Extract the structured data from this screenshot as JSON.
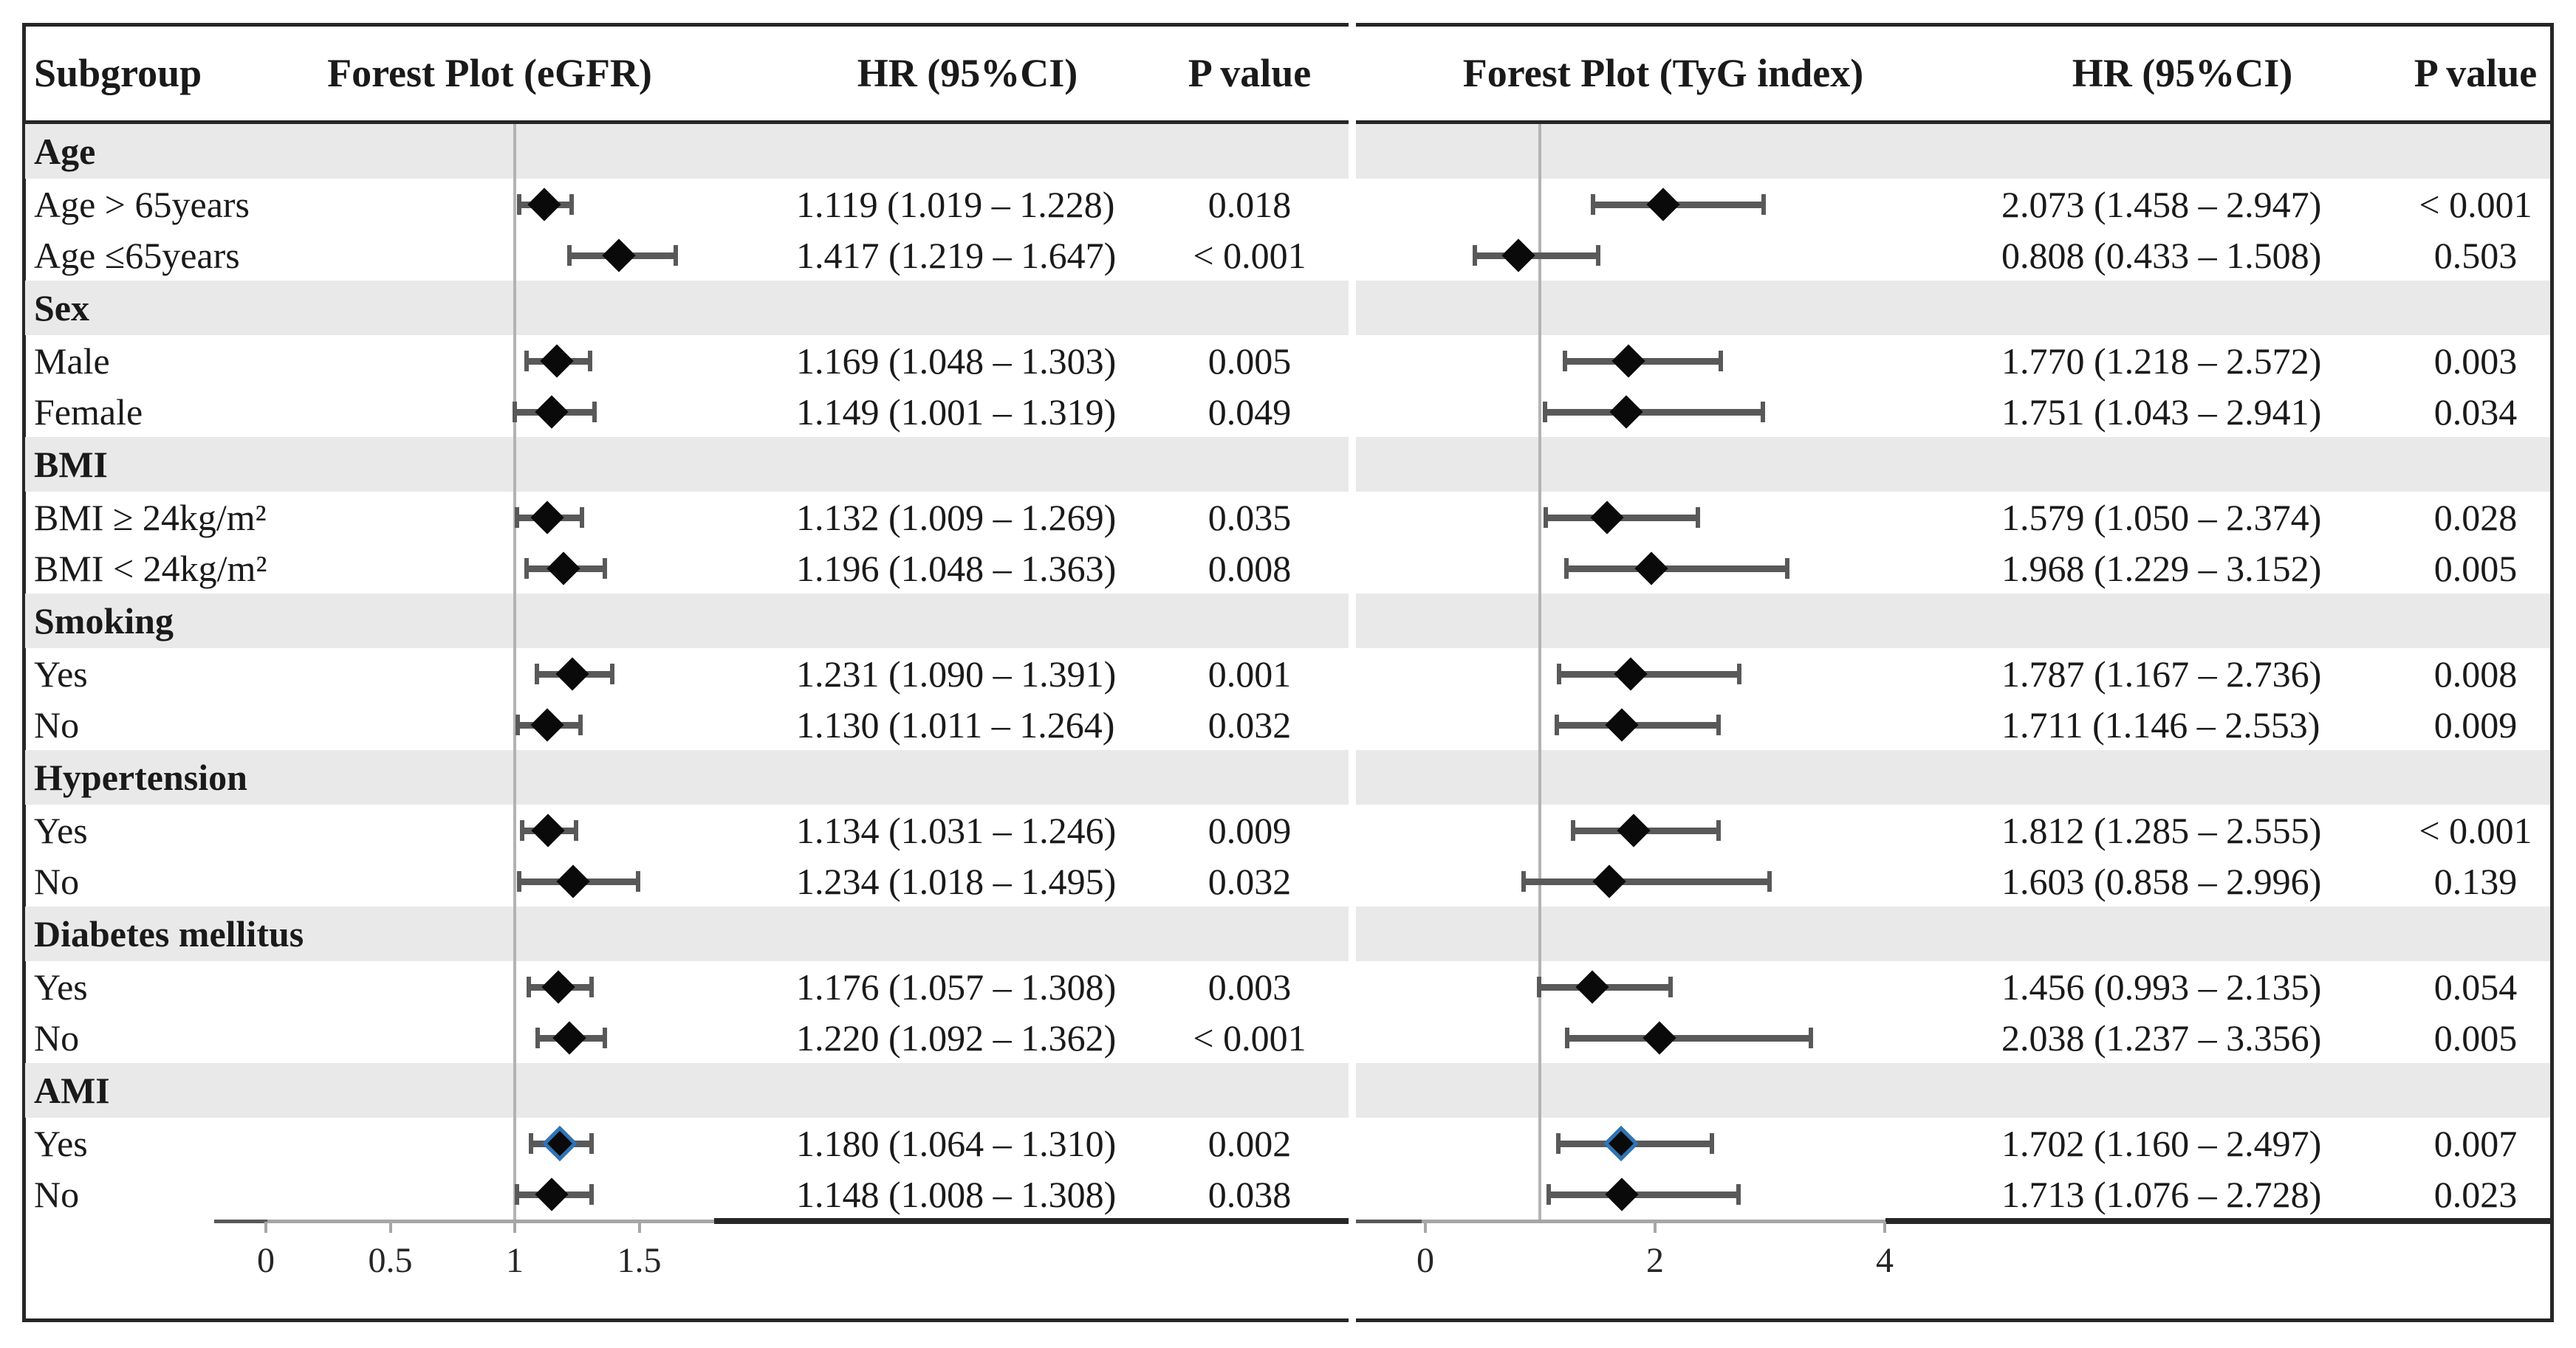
{
  "header": {
    "subgroup": "Subgroup",
    "plot_egfr": "Forest Plot (eGFR)",
    "hr1": "HR (95%CI)",
    "p1": "P value",
    "plot_tyg": "Forest Plot (TyG index)",
    "hr2": "HR (95%CI)",
    "p2": "P value"
  },
  "colors": {
    "section_row_bg": "#e9e9e9",
    "data_row_bg": "#ffffff",
    "diamond": "#0a0a0a",
    "highlight_diamond_outline": "#2e75b6",
    "ci_bar": "#595959",
    "reference_line": "#b3b3b3",
    "axis_line_gray": "#a6a6a6",
    "axis_line_dark": "#595959",
    "table_rule": "#262626"
  },
  "chart_data": {
    "type": "forest",
    "panels": [
      {
        "id": "egfr",
        "title": "Forest Plot (eGFR)",
        "hr_header": "HR (95%CI)",
        "p_header": "P value",
        "axis_tick_values": [
          0,
          0.5,
          1,
          1.5
        ],
        "axis_tick_labels": [
          "0",
          "0.5",
          "1",
          "1.5"
        ],
        "axis_range": [
          -0.2,
          1.8
        ],
        "reference_line": 1
      },
      {
        "id": "tyg",
        "title": "Forest Plot (TyG index)",
        "hr_header": "HR (95%CI)",
        "p_header": "P value",
        "axis_tick_values": [
          0,
          2,
          4
        ],
        "axis_tick_labels": [
          "0",
          "2",
          "4"
        ],
        "axis_range": [
          -0.6,
          4.9
        ],
        "reference_line": 1
      }
    ],
    "rows": [
      {
        "type": "section",
        "label": "Age"
      },
      {
        "type": "data",
        "label": "Age > 65years",
        "egfr": {
          "est": 1.119,
          "lo": 1.019,
          "hi": 1.228,
          "hr_text": "1.119 (1.019 – 1.228)",
          "p": "0.018"
        },
        "tyg": {
          "est": 2.073,
          "lo": 1.458,
          "hi": 2.947,
          "hr_text": "2.073 (1.458 – 2.947)",
          "p": "< 0.001"
        }
      },
      {
        "type": "data",
        "label": "Age ≤65years",
        "egfr": {
          "est": 1.417,
          "lo": 1.219,
          "hi": 1.647,
          "hr_text": "1.417 (1.219 – 1.647)",
          "p": "< 0.001"
        },
        "tyg": {
          "est": 0.808,
          "lo": 0.433,
          "hi": 1.508,
          "hr_text": "0.808 (0.433 – 1.508)",
          "p": "0.503"
        }
      },
      {
        "type": "section",
        "label": "Sex"
      },
      {
        "type": "data",
        "label": "Male",
        "egfr": {
          "est": 1.169,
          "lo": 1.048,
          "hi": 1.303,
          "hr_text": "1.169 (1.048 – 1.303)",
          "p": "0.005"
        },
        "tyg": {
          "est": 1.77,
          "lo": 1.218,
          "hi": 2.572,
          "hr_text": "1.770 (1.218 – 2.572)",
          "p": "0.003"
        }
      },
      {
        "type": "data",
        "label": "Female",
        "egfr": {
          "est": 1.149,
          "lo": 1.001,
          "hi": 1.319,
          "hr_text": "1.149 (1.001 – 1.319)",
          "p": "0.049"
        },
        "tyg": {
          "est": 1.751,
          "lo": 1.043,
          "hi": 2.941,
          "hr_text": "1.751 (1.043 – 2.941)",
          "p": "0.034"
        }
      },
      {
        "type": "section",
        "label": "BMI"
      },
      {
        "type": "data",
        "label": "BMI ≥ 24kg/m²",
        "egfr": {
          "est": 1.132,
          "lo": 1.009,
          "hi": 1.269,
          "hr_text": "1.132 (1.009 – 1.269)",
          "p": "0.035"
        },
        "tyg": {
          "est": 1.579,
          "lo": 1.05,
          "hi": 2.374,
          "hr_text": "1.579 (1.050 – 2.374)",
          "p": "0.028"
        }
      },
      {
        "type": "data",
        "label": "BMI < 24kg/m²",
        "egfr": {
          "est": 1.196,
          "lo": 1.048,
          "hi": 1.363,
          "hr_text": "1.196 (1.048 – 1.363)",
          "p": "0.008"
        },
        "tyg": {
          "est": 1.968,
          "lo": 1.229,
          "hi": 3.152,
          "hr_text": "1.968 (1.229 – 3.152)",
          "p": "0.005"
        }
      },
      {
        "type": "section",
        "label": "Smoking"
      },
      {
        "type": "data",
        "label": "Yes",
        "egfr": {
          "est": 1.231,
          "lo": 1.09,
          "hi": 1.391,
          "hr_text": "1.231 (1.090 – 1.391)",
          "p": "0.001"
        },
        "tyg": {
          "est": 1.787,
          "lo": 1.167,
          "hi": 2.736,
          "hr_text": "1.787 (1.167 – 2.736)",
          "p": "0.008"
        }
      },
      {
        "type": "data",
        "label": "No",
        "egfr": {
          "est": 1.13,
          "lo": 1.011,
          "hi": 1.264,
          "hr_text": "1.130 (1.011 – 1.264)",
          "p": "0.032"
        },
        "tyg": {
          "est": 1.711,
          "lo": 1.146,
          "hi": 2.553,
          "hr_text": "1.711 (1.146 – 2.553)",
          "p": "0.009"
        }
      },
      {
        "type": "section",
        "label": "Hypertension"
      },
      {
        "type": "data",
        "label": "Yes",
        "egfr": {
          "est": 1.134,
          "lo": 1.031,
          "hi": 1.246,
          "hr_text": "1.134 (1.031 – 1.246)",
          "p": "0.009"
        },
        "tyg": {
          "est": 1.812,
          "lo": 1.285,
          "hi": 2.555,
          "hr_text": "1.812 (1.285 – 2.555)",
          "p": "< 0.001"
        }
      },
      {
        "type": "data",
        "label": "No",
        "egfr": {
          "est": 1.234,
          "lo": 1.018,
          "hi": 1.495,
          "hr_text": "1.234 (1.018 – 1.495)",
          "p": "0.032"
        },
        "tyg": {
          "est": 1.603,
          "lo": 0.858,
          "hi": 2.996,
          "hr_text": "1.603 (0.858 – 2.996)",
          "p": "0.139"
        }
      },
      {
        "type": "section",
        "label": "Diabetes mellitus"
      },
      {
        "type": "data",
        "label": "Yes",
        "egfr": {
          "est": 1.176,
          "lo": 1.057,
          "hi": 1.308,
          "hr_text": "1.176 (1.057 – 1.308)",
          "p": "0.003"
        },
        "tyg": {
          "est": 1.456,
          "lo": 0.993,
          "hi": 2.135,
          "hr_text": "1.456 (0.993 – 2.135)",
          "p": "0.054"
        }
      },
      {
        "type": "data",
        "label": "No",
        "egfr": {
          "est": 1.22,
          "lo": 1.092,
          "hi": 1.362,
          "hr_text": "1.220 (1.092 – 1.362)",
          "p": "< 0.001"
        },
        "tyg": {
          "est": 2.038,
          "lo": 1.237,
          "hi": 3.356,
          "hr_text": "2.038 (1.237 – 3.356)",
          "p": "0.005"
        }
      },
      {
        "type": "section",
        "label": "AMI"
      },
      {
        "type": "data",
        "label": "Yes",
        "highlight": true,
        "egfr": {
          "est": 1.18,
          "lo": 1.064,
          "hi": 1.31,
          "hr_text": "1.180 (1.064 – 1.310)",
          "p": "0.002"
        },
        "tyg": {
          "est": 1.702,
          "lo": 1.16,
          "hi": 2.497,
          "hr_text": "1.702 (1.160 – 2.497)",
          "p": "0.007"
        }
      },
      {
        "type": "data",
        "label": "No",
        "egfr": {
          "est": 1.148,
          "lo": 1.008,
          "hi": 1.308,
          "hr_text": "1.148 (1.008 – 1.308)",
          "p": "0.038"
        },
        "tyg": {
          "est": 1.713,
          "lo": 1.076,
          "hi": 2.728,
          "hr_text": "1.713 (1.076 – 2.728)",
          "p": "0.023"
        }
      }
    ]
  }
}
